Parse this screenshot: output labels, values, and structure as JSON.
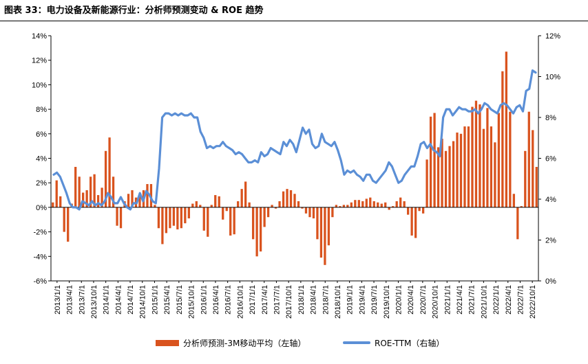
{
  "title": "图表 33：电力设备及新能源行业：分析师预测变动 & ROE 趋势",
  "chart_data": {
    "type": "bar+line",
    "left_axis": {
      "ylim": [
        -6,
        14
      ],
      "ticks": [
        "-6%",
        "-4%",
        "-2%",
        "0%",
        "2%",
        "4%",
        "6%",
        "8%",
        "10%",
        "12%",
        "14%"
      ]
    },
    "right_axis": {
      "ylim": [
        0,
        12
      ],
      "ticks": [
        "0%",
        "2%",
        "4%",
        "6%",
        "8%",
        "10%",
        "12%"
      ]
    },
    "x_tick_labels": [
      "2013/1/1",
      "2013/4/1",
      "2013/7/1",
      "2013/10/1",
      "2014/1/1",
      "2014/4/1",
      "2014/7/1",
      "2014/10/1",
      "2015/1/1",
      "2015/4/1",
      "2015/7/1",
      "2015/10/1",
      "2016/1/1",
      "2016/4/1",
      "2016/7/1",
      "2016/10/1",
      "2017/1/1",
      "2017/4/1",
      "2017/7/1",
      "2017/10/1",
      "2018/1/1",
      "2018/4/1",
      "2018/7/1",
      "2018/10/1",
      "2019/1/1",
      "2019/4/1",
      "2019/7/1",
      "2019/10/1",
      "2020/1/1",
      "2020/4/1",
      "2020/7/1",
      "2020/10/1",
      "2021/1/1",
      "2021/4/1",
      "2021/7/1",
      "2021/10/1",
      "2022/1/1",
      "2022/4/1",
      "2022/7/1",
      "2022/10/1"
    ],
    "series": [
      {
        "name": "分析师预测-3M移动平均（左轴）",
        "type": "bar",
        "axis": "left",
        "color": "#D9531E",
        "values": [
          0.4,
          2.2,
          0.9,
          -2.0,
          -2.8,
          0.3,
          3.3,
          2.5,
          1.2,
          1.4,
          2.5,
          2.7,
          1.0,
          1.6,
          4.6,
          5.7,
          2.5,
          -1.5,
          -1.7,
          0.5,
          1.1,
          1.4,
          0.8,
          0.9,
          1.4,
          1.9,
          1.9,
          0.2,
          -1.7,
          -3.0,
          -2.1,
          -1.7,
          -1.5,
          -1.8,
          -1.7,
          -1.3,
          -0.9,
          0.3,
          0.5,
          0.2,
          -1.9,
          -2.4,
          0.2,
          1.0,
          0.9,
          -1.0,
          -0.3,
          -2.3,
          -2.2,
          0.5,
          1.5,
          2.1,
          0.4,
          -2.6,
          -4.0,
          -3.6,
          -1.6,
          -0.8,
          0.2,
          -0.1,
          0.5,
          1.3,
          1.5,
          1.4,
          1.1,
          0.5,
          -0.1,
          -0.5,
          -0.8,
          -0.9,
          -2.6,
          -4.1,
          -4.7,
          -3.1,
          -0.8,
          0.2,
          0.1,
          0.2,
          0.2,
          0.4,
          0.6,
          0.6,
          0.5,
          0.7,
          0.8,
          0.5,
          0.4,
          0.3,
          0.4,
          -0.2,
          0.1,
          0.5,
          0.8,
          0.5,
          -0.6,
          -2.3,
          -2.5,
          -0.3,
          -0.5,
          3.9,
          7.4,
          7.7,
          4.9,
          5.6,
          4.6,
          5.0,
          5.4,
          6.1,
          6.0,
          6.6,
          6.6,
          8.2,
          8.7,
          8.4,
          6.4,
          8.1,
          6.6,
          5.3,
          7.7,
          11.1,
          12.7,
          7.8,
          1.1,
          -2.6,
          0.1,
          4.6,
          7.8,
          6.3,
          3.3
        ]
      },
      {
        "name": "ROE-TTM（右轴）",
        "type": "line",
        "axis": "right",
        "color": "#5B8FD6",
        "values": [
          5.2,
          5.3,
          5.1,
          4.7,
          4.3,
          3.8,
          3.6,
          3.6,
          3.5,
          3.9,
          3.8,
          3.7,
          3.9,
          3.7,
          3.8,
          3.7,
          3.9,
          4.3,
          4.1,
          3.8,
          3.8,
          4.1,
          3.8,
          3.6,
          3.5,
          3.8,
          3.8,
          4.3,
          3.9,
          4.4,
          4.2,
          3.9,
          3.8,
          5.5,
          8.0,
          8.2,
          8.2,
          8.1,
          8.2,
          8.1,
          8.2,
          8.1,
          8.1,
          8.2,
          8.0,
          8.0,
          7.3,
          7.0,
          6.5,
          6.6,
          6.5,
          6.6,
          6.6,
          6.8,
          6.6,
          6.5,
          6.4,
          6.2,
          6.3,
          6.2,
          6.0,
          5.8,
          5.8,
          5.9,
          5.8,
          6.3,
          6.1,
          6.2,
          6.5,
          6.4,
          6.3,
          6.2,
          6.8,
          6.6,
          6.9,
          6.7,
          6.3,
          6.9,
          7.5,
          7.2,
          7.4,
          6.7,
          6.5,
          6.6,
          7.2,
          6.8,
          6.7,
          6.6,
          6.8,
          6.4,
          5.9,
          5.2,
          5.4,
          5.3,
          5.4,
          5.2,
          5.1,
          4.9,
          5.2,
          5.2,
          4.9,
          4.8,
          5.0,
          5.2,
          5.4,
          5.8,
          5.6,
          5.2,
          4.8,
          4.9,
          5.2,
          5.4,
          5.6,
          5.6,
          6.1,
          6.7,
          6.8,
          6.5,
          6.7,
          6.4,
          6.3,
          6.1,
          8.0,
          8.4,
          8.4,
          8.1,
          8.3,
          8.5,
          8.4,
          8.4,
          8.3,
          8.3,
          8.4,
          8.2,
          8.4,
          8.7,
          8.6,
          8.4,
          8.3,
          8.2,
          8.6,
          8.7,
          8.6,
          8.4,
          8.2,
          8.5,
          8.6,
          8.3,
          9.3,
          9.4,
          10.3,
          10.2
        ]
      }
    ]
  },
  "legend": {
    "bar_label": "分析师预测-3M移动平均（左轴）",
    "line_label": "ROE-TTM（右轴）"
  }
}
